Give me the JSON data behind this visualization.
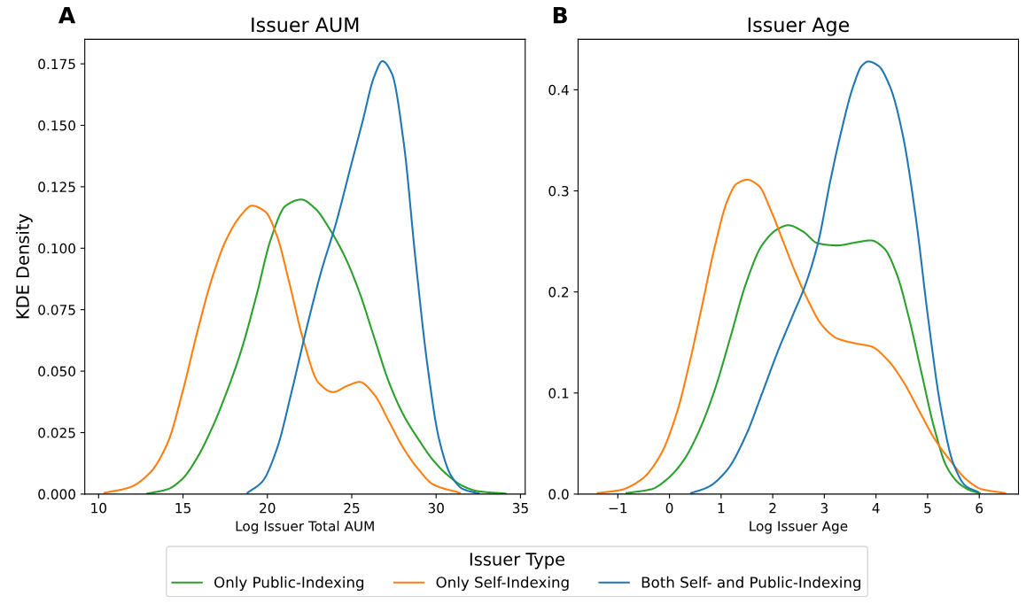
{
  "chart_data": [
    {
      "type": "line",
      "title": "Issuer AUM",
      "xlabel": "Log Issuer Total AUM",
      "ylabel": "KDE Density",
      "annotations": [
        "A"
      ],
      "legend": "bottom",
      "legend_title": "Issuer Type",
      "grid": false,
      "xlim": [
        9.18,
        35.28
      ],
      "ylim": [
        0,
        0.185
      ],
      "xticks": [
        10,
        15,
        20,
        25,
        30,
        35
      ],
      "yticks": [
        {
          "value": 0,
          "label": "0.000"
        },
        {
          "value": 0.025,
          "label": "0.025"
        },
        {
          "value": 0.05,
          "label": "0.050"
        },
        {
          "value": 0.075,
          "label": "0.075"
        },
        {
          "value": 0.1,
          "label": "0.100"
        },
        {
          "value": 0.125,
          "label": "0.125"
        },
        {
          "value": 0.15,
          "label": "0.150"
        },
        {
          "value": 0.175,
          "label": "0.175"
        }
      ],
      "series": [
        {
          "name": "Only Public-Indexing",
          "color": "#2ca02c",
          "x": [
            12.88,
            14.1,
            14.98,
            15.85,
            16.73,
            17.6,
            18.47,
            19.35,
            20.22,
            21.09,
            22.0,
            22.84,
            23.71,
            24.59,
            25.46,
            26.33,
            27.21,
            28.08,
            28.96,
            29.83,
            30.7,
            31.58,
            32.45,
            34.11
          ],
          "values": [
            0.0002,
            0.002,
            0.0063,
            0.0149,
            0.027,
            0.0417,
            0.0588,
            0.0807,
            0.104,
            0.1173,
            0.1198,
            0.1161,
            0.1076,
            0.0966,
            0.082,
            0.0637,
            0.0454,
            0.032,
            0.0222,
            0.0137,
            0.0076,
            0.0033,
            0.0012,
            0.0002
          ]
        },
        {
          "name": "Only Self-Indexing",
          "color": "#ff7f0e",
          "x": [
            10.35,
            11.83,
            13.06,
            14.1,
            14.98,
            15.85,
            16.73,
            17.6,
            18.47,
            19.08,
            19.87,
            20.57,
            21.27,
            22.14,
            23.02,
            23.89,
            24.76,
            25.46,
            26.33,
            27.21,
            28.08,
            28.96,
            29.83,
            31.4
          ],
          "values": [
            0.0005,
            0.0027,
            0.0088,
            0.021,
            0.0417,
            0.066,
            0.088,
            0.104,
            0.1137,
            0.1173,
            0.1149,
            0.105,
            0.0868,
            0.0624,
            0.0454,
            0.0415,
            0.0441,
            0.0456,
            0.0405,
            0.0295,
            0.0185,
            0.01,
            0.0039,
            0.0005
          ]
        },
        {
          "name": "Both Self- and Public-Indexing",
          "color": "#1f77b4",
          "x": [
            18.82,
            19.7,
            20.57,
            21.44,
            22.32,
            23.19,
            24.06,
            24.94,
            25.64,
            26.33,
            26.82,
            27.38,
            28.08,
            28.78,
            29.48,
            30.18,
            30.88,
            31.58,
            32.54
          ],
          "values": [
            0.0005,
            0.0051,
            0.0185,
            0.0417,
            0.0673,
            0.0905,
            0.11,
            0.1332,
            0.1515,
            0.1698,
            0.1761,
            0.171,
            0.1429,
            0.0954,
            0.0527,
            0.0222,
            0.0076,
            0.0021,
            0.0002
          ]
        }
      ]
    },
    {
      "type": "line",
      "title": "Issuer Age",
      "xlabel": "Log Issuer Age",
      "annotations": [
        "B"
      ],
      "grid": false,
      "xlim": [
        -1.77,
        6.76
      ],
      "ylim": [
        0,
        0.45
      ],
      "xticks": [
        {
          "value": -1,
          "label": "−1"
        },
        0,
        1,
        2,
        3,
        4,
        5,
        6
      ],
      "yticks": [
        {
          "value": 0,
          "label": "0.0"
        },
        0.1,
        0.2,
        0.3,
        0.4
      ],
      "series": [
        {
          "color": "#2ca02c",
          "x": [
            -0.83,
            -0.34,
            -0.04,
            0.27,
            0.57,
            0.87,
            1.18,
            1.48,
            1.79,
            2.09,
            2.3,
            2.58,
            2.88,
            3.25,
            3.61,
            3.9,
            4.16,
            4.4,
            4.64,
            4.89,
            5.13,
            5.37,
            5.62,
            5.86,
            6.01
          ],
          "values": [
            0.001,
            0.005,
            0.015,
            0.033,
            0.062,
            0.102,
            0.155,
            0.208,
            0.246,
            0.262,
            0.266,
            0.26,
            0.248,
            0.246,
            0.249,
            0.251,
            0.243,
            0.218,
            0.174,
            0.118,
            0.065,
            0.027,
            0.01,
            0.003,
            0.001
          ]
        },
        {
          "color": "#ff7f0e",
          "x": [
            -1.39,
            -0.95,
            -0.53,
            -0.16,
            0.14,
            0.39,
            0.63,
            0.87,
            1.12,
            1.3,
            1.51,
            1.73,
            1.97,
            2.21,
            2.45,
            2.7,
            2.94,
            3.25,
            3.61,
            3.91,
            4.22,
            4.52,
            4.83,
            5.13,
            5.44,
            5.74,
            6.04,
            6.5
          ],
          "values": [
            0.001,
            0.004,
            0.015,
            0.04,
            0.08,
            0.13,
            0.186,
            0.243,
            0.29,
            0.307,
            0.311,
            0.305,
            0.28,
            0.249,
            0.218,
            0.19,
            0.168,
            0.154,
            0.149,
            0.146,
            0.133,
            0.112,
            0.083,
            0.055,
            0.033,
            0.015,
            0.005,
            0.001
          ]
        },
        {
          "color": "#1f77b4",
          "x": [
            0.42,
            0.75,
            1.12,
            1.48,
            1.79,
            2.09,
            2.39,
            2.64,
            2.88,
            3.12,
            3.31,
            3.55,
            3.73,
            3.85,
            4.04,
            4.28,
            4.52,
            4.77,
            5.01,
            5.25,
            5.5,
            5.74,
            5.98
          ],
          "values": [
            0.001,
            0.007,
            0.024,
            0.058,
            0.099,
            0.14,
            0.177,
            0.208,
            0.249,
            0.311,
            0.355,
            0.402,
            0.424,
            0.428,
            0.424,
            0.402,
            0.355,
            0.274,
            0.174,
            0.087,
            0.03,
            0.008,
            0.002
          ]
        }
      ]
    }
  ]
}
